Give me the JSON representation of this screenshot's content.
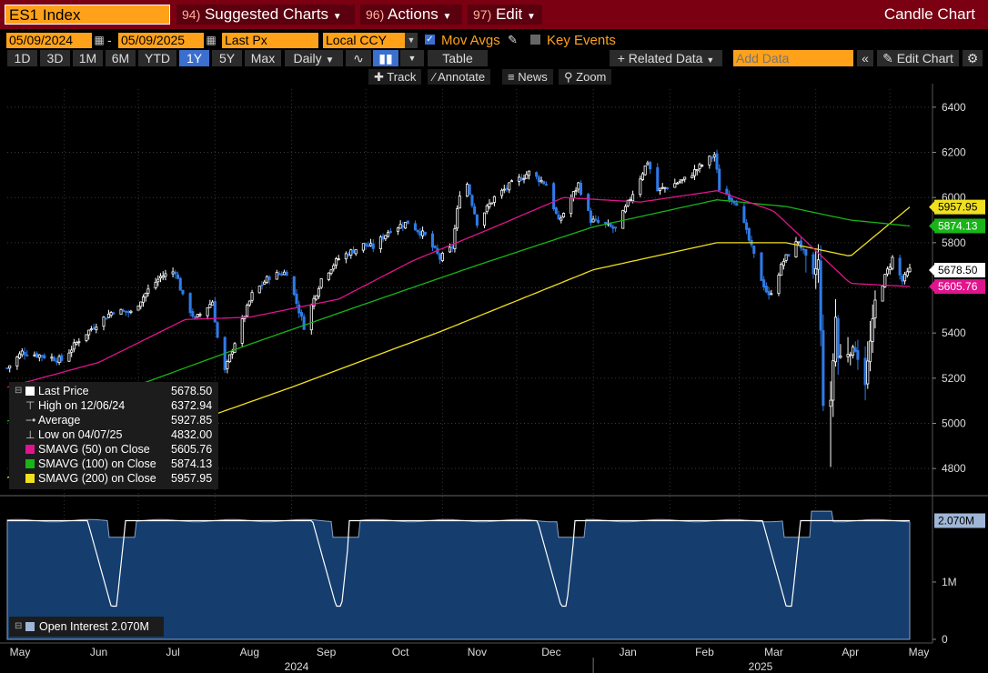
{
  "header": {
    "ticker": "ES1 Index",
    "menus": [
      {
        "num": "94)",
        "label": "Suggested Charts"
      },
      {
        "num": "96)",
        "label": "Actions"
      },
      {
        "num": "97)",
        "label": "Edit"
      }
    ],
    "chart_type": "Candle Chart"
  },
  "controls": {
    "start_date": "05/09/2024",
    "end_date": "05/09/2025",
    "price_field": "Last Px",
    "currency": "Local CCY",
    "mov_avgs_label": "Mov Avgs",
    "key_events_label": "Key Events",
    "periods": [
      "1D",
      "3D",
      "1M",
      "6M",
      "YTD",
      "1Y",
      "5Y",
      "Max"
    ],
    "selected_period": "1Y",
    "frequency": "Daily",
    "table_label": "Table",
    "related_data_label": "+ Related Data",
    "add_data_placeholder": "Add Data",
    "edit_chart_label": "Edit Chart",
    "tools": [
      "Track",
      "Annotate",
      "News",
      "Zoom"
    ]
  },
  "legend": {
    "rows": [
      {
        "label": "Last Price",
        "value": "5678.50",
        "color": "#ffffff"
      },
      {
        "label": "High on 12/06/24",
        "value": "6372.94"
      },
      {
        "label": "Average",
        "value": "5927.85"
      },
      {
        "label": "Low on 04/07/25",
        "value": "4832.00"
      },
      {
        "label": "SMAVG (50)  on Close",
        "value": "5605.76",
        "color": "#e0148c"
      },
      {
        "label": "SMAVG (100)  on Close",
        "value": "5874.13",
        "color": "#18b418"
      },
      {
        "label": "SMAVG (200)  on Close",
        "value": "5957.95",
        "color": "#f0e020"
      }
    ],
    "open_interest_label": "Open Interest 2.070M"
  },
  "chart_data": {
    "type": "candlestick",
    "price_axis": {
      "ticks": [
        4800,
        5000,
        5200,
        5400,
        5600,
        5800,
        6000,
        6200,
        6400
      ],
      "range": [
        4700,
        6480
      ]
    },
    "price_badges": [
      {
        "value": "5957.95",
        "color": "#f0e020"
      },
      {
        "value": "5874.13",
        "color": "#18b418"
      },
      {
        "value": "5678.50",
        "color": "#ffffff"
      },
      {
        "value": "5605.76",
        "color": "#e0148c"
      }
    ],
    "x_axis": {
      "months": [
        "May",
        "Jun",
        "Jul",
        "Aug",
        "Sep",
        "Oct",
        "Nov",
        "Dec",
        "Jan",
        "Feb",
        "Mar",
        "Apr",
        "May"
      ],
      "years": [
        "2024",
        "2025"
      ]
    },
    "close_anchors": [
      [
        "2024-05-09",
        5245
      ],
      [
        "2024-05-15",
        5315
      ],
      [
        "2024-05-23",
        5300
      ],
      [
        "2024-05-31",
        5280
      ],
      [
        "2024-06-07",
        5370
      ],
      [
        "2024-06-14",
        5440
      ],
      [
        "2024-06-21",
        5500
      ],
      [
        "2024-06-28",
        5490
      ],
      [
        "2024-07-05",
        5590
      ],
      [
        "2024-07-10",
        5650
      ],
      [
        "2024-07-16",
        5675
      ],
      [
        "2024-07-19",
        5560
      ],
      [
        "2024-07-24",
        5460
      ],
      [
        "2024-07-31",
        5540
      ],
      [
        "2024-08-02",
        5380
      ],
      [
        "2024-08-05",
        5230
      ],
      [
        "2024-08-09",
        5360
      ],
      [
        "2024-08-16",
        5570
      ],
      [
        "2024-08-23",
        5650
      ],
      [
        "2024-08-30",
        5670
      ],
      [
        "2024-09-06",
        5430
      ],
      [
        "2024-09-13",
        5640
      ],
      [
        "2024-09-20",
        5730
      ],
      [
        "2024-09-30",
        5790
      ],
      [
        "2024-10-04",
        5780
      ],
      [
        "2024-10-11",
        5860
      ],
      [
        "2024-10-18",
        5890
      ],
      [
        "2024-10-25",
        5830
      ],
      [
        "2024-10-31",
        5730
      ],
      [
        "2024-11-05",
        5780
      ],
      [
        "2024-11-08",
        6020
      ],
      [
        "2024-11-11",
        6060
      ],
      [
        "2024-11-15",
        5890
      ],
      [
        "2024-11-22",
        6000
      ],
      [
        "2024-11-29",
        6060
      ],
      [
        "2024-12-06",
        6110
      ],
      [
        "2024-12-13",
        6060
      ],
      [
        "2024-12-18",
        5890
      ],
      [
        "2024-12-26",
        6060
      ],
      [
        "2024-12-31",
        5900
      ],
      [
        "2025-01-10",
        5860
      ],
      [
        "2025-01-17",
        6020
      ],
      [
        "2025-01-23",
        6160
      ],
      [
        "2025-01-27",
        6030
      ],
      [
        "2025-02-07",
        6080
      ],
      [
        "2025-02-19",
        6190
      ],
      [
        "2025-02-21",
        6040
      ],
      [
        "2025-02-28",
        5980
      ],
      [
        "2025-03-10",
        5640
      ],
      [
        "2025-03-13",
        5560
      ],
      [
        "2025-03-19",
        5720
      ],
      [
        "2025-03-25",
        5810
      ],
      [
        "2025-03-31",
        5650
      ],
      [
        "2025-04-02",
        5720
      ],
      [
        "2025-04-04",
        5090
      ],
      [
        "2025-04-07",
        5090
      ],
      [
        "2025-04-09",
        5470
      ],
      [
        "2025-04-10",
        5290
      ],
      [
        "2025-04-17",
        5330
      ],
      [
        "2025-04-21",
        5180
      ],
      [
        "2025-04-25",
        5540
      ],
      [
        "2025-05-02",
        5730
      ],
      [
        "2025-05-06",
        5630
      ],
      [
        "2025-05-09",
        5678.5
      ]
    ],
    "sma50": [
      [
        "2024-05-09",
        5160
      ],
      [
        "2024-06-15",
        5270
      ],
      [
        "2024-07-20",
        5460
      ],
      [
        "2024-08-15",
        5470
      ],
      [
        "2024-09-20",
        5550
      ],
      [
        "2024-10-20",
        5720
      ],
      [
        "2024-11-20",
        5860
      ],
      [
        "2024-12-20",
        6000
      ],
      [
        "2025-01-20",
        5980
      ],
      [
        "2025-02-20",
        6030
      ],
      [
        "2025-03-15",
        5940
      ],
      [
        "2025-04-15",
        5620
      ],
      [
        "2025-05-09",
        5605.76
      ]
    ],
    "sma100": [
      [
        "2024-05-09",
        5010
      ],
      [
        "2024-07-01",
        5170
      ],
      [
        "2024-08-15",
        5350
      ],
      [
        "2024-10-01",
        5530
      ],
      [
        "2024-11-15",
        5700
      ],
      [
        "2025-01-01",
        5870
      ],
      [
        "2025-02-20",
        5990
      ],
      [
        "2025-03-20",
        5960
      ],
      [
        "2025-04-15",
        5900
      ],
      [
        "2025-05-09",
        5874.13
      ]
    ],
    "sma200": [
      [
        "2024-05-09",
        4760
      ],
      [
        "2024-07-01",
        4920
      ],
      [
        "2024-09-01",
        5160
      ],
      [
        "2024-11-01",
        5410
      ],
      [
        "2025-01-01",
        5680
      ],
      [
        "2025-02-20",
        5800
      ],
      [
        "2025-03-20",
        5800
      ],
      [
        "2025-04-15",
        5740
      ],
      [
        "2025-05-09",
        5957.95
      ]
    ],
    "open_interest": {
      "axis_ticks": [
        "0",
        "1M",
        "2.070M"
      ],
      "range": [
        0,
        2300000
      ],
      "last": 2070000,
      "rolls": [
        "2024-06-20",
        "2024-09-19",
        "2024-12-19",
        "2025-03-20"
      ]
    }
  }
}
